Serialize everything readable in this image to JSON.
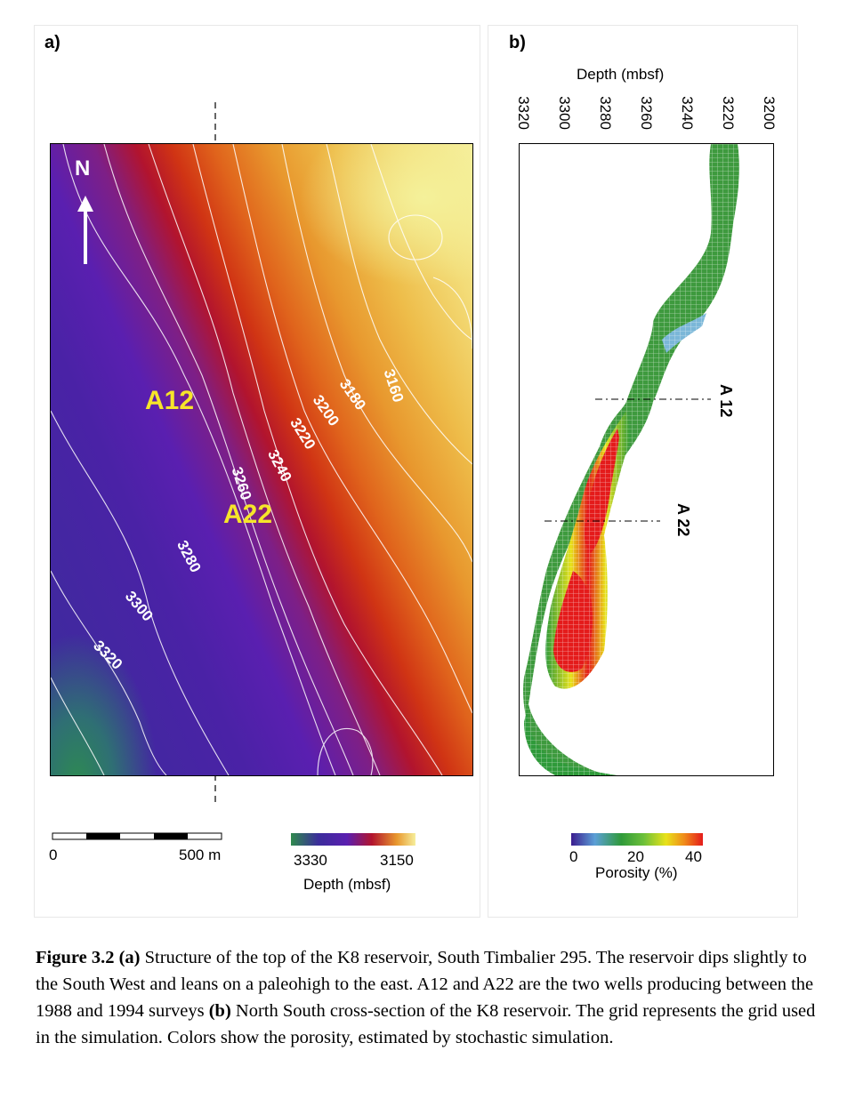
{
  "panel_a": {
    "label": "a)",
    "north": "N",
    "wells": [
      "A12",
      "A22"
    ],
    "contours": [
      "3160",
      "3180",
      "3200",
      "3220",
      "3240",
      "3260",
      "3280",
      "3300",
      "3320"
    ],
    "scalebar": {
      "start": "0",
      "end": "500 m"
    },
    "colorbar": {
      "min": "3330",
      "max": "3150",
      "title": "Depth (mbsf)",
      "colors": [
        "#2f8a4d",
        "#3b2d9b",
        "#5a1fb0",
        "#b2142e",
        "#e8982e",
        "#f6ee9c"
      ]
    }
  },
  "panel_b": {
    "label": "b)",
    "axis_title": "Depth (mbsf)",
    "ticks": [
      "3320",
      "3300",
      "3280",
      "3260",
      "3240",
      "3220",
      "3200"
    ],
    "wells": [
      "A 12",
      "A 22"
    ],
    "colorbar": {
      "labels": [
        "0",
        "20",
        "40"
      ],
      "title": "Porosity (%)",
      "colors": [
        "#3b1d8f",
        "#5b9fd6",
        "#2f9a3a",
        "#6cc03a",
        "#e8e21a",
        "#f08a1a",
        "#e41b1b"
      ]
    }
  },
  "caption": {
    "fig_label": "Figure 3.2",
    "a_tag": "(a)",
    "text_a": " Structure of the top of the K8 reservoir, South Timbalier 295. The reservoir dips slightly to the South West and leans on a paleohigh to the east. A12 and A22 are the two wells producing between the 1988 and 1994 surveys ",
    "b_tag": "(b)",
    "text_b": " North South cross-section of the K8 reservoir. The grid represents the grid used in the simulation. Colors show the porosity, estimated by stochastic simulation."
  }
}
